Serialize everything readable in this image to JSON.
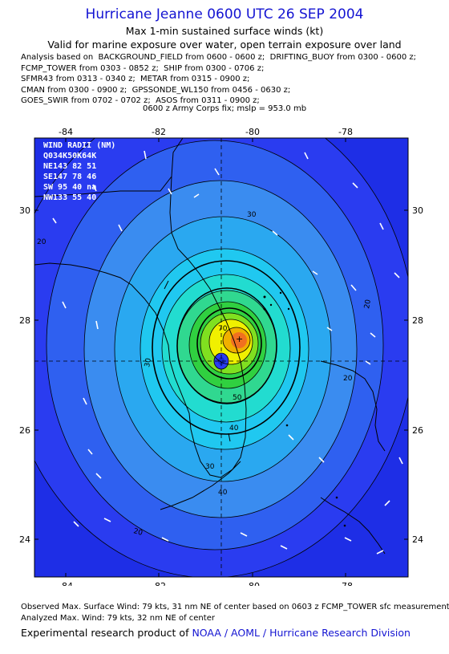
{
  "header": {
    "title": "Hurricane Jeanne 0600 UTC 26 SEP 2004",
    "subtitle1": "Max 1-min sustained surface winds (kt)",
    "subtitle2": "Valid for marine exposure over water, open terrain exposure over land"
  },
  "analysis_lines": [
    "Analysis based on  BACKGROUND_FIELD from 0600 - 0600 z;  DRIFTING_BUOY from 0300 - 0600 z;",
    "FCMP_TOWER from 0303 - 0852 z;  SHIP from 0300 - 0706 z;",
    "SFMR43 from 0313 - 0340 z;  METAR from 0315 - 0900 z;",
    "CMAN from 0300 - 0900 z;  GPSSONDE_WL150 from 0456 - 0630 z;",
    "GOES_SWIR from 0702 - 0702 z;  ASOS from 0311 - 0900 z;"
  ],
  "fix_line": "0600 z Army Corps fix; mslp = 953.0 mb",
  "map": {
    "x_ticks": [
      "-84",
      "-82",
      "-80",
      "-78"
    ],
    "y_ticks": [
      "30",
      "28",
      "26",
      "24"
    ],
    "wind_radii": {
      "title": "WIND RADII (NM)",
      "header": "Q034K50K64K",
      "rows": [
        "NE143 82 51",
        "SE147 78 46",
        "SW 95 40 na",
        "NW133 55 40"
      ]
    },
    "contour_labels": [
      "20",
      "30",
      "20",
      "70",
      "30",
      "50",
      "40",
      "30",
      "40",
      "20",
      "20"
    ],
    "colors": {
      "outer": "#2a3cf0",
      "mid": "#3a8cf0",
      "cyan": "#20c8f0",
      "green": "#30d040",
      "yellow": "#f0f000",
      "orange": "#f09020",
      "core": "#1428d2"
    }
  },
  "footer": {
    "observed": "Observed Max. Surface Wind: 79 kts, 31 nm NE of center based on 0603 z FCMP_TOWER sfc measurement",
    "analyzed": "Analyzed Max. Wind: 79 kts, 32 nm NE of center",
    "credit_prefix": "Experimental research product of ",
    "credit_link": "NOAA / AOML / Hurricane Research Division"
  }
}
